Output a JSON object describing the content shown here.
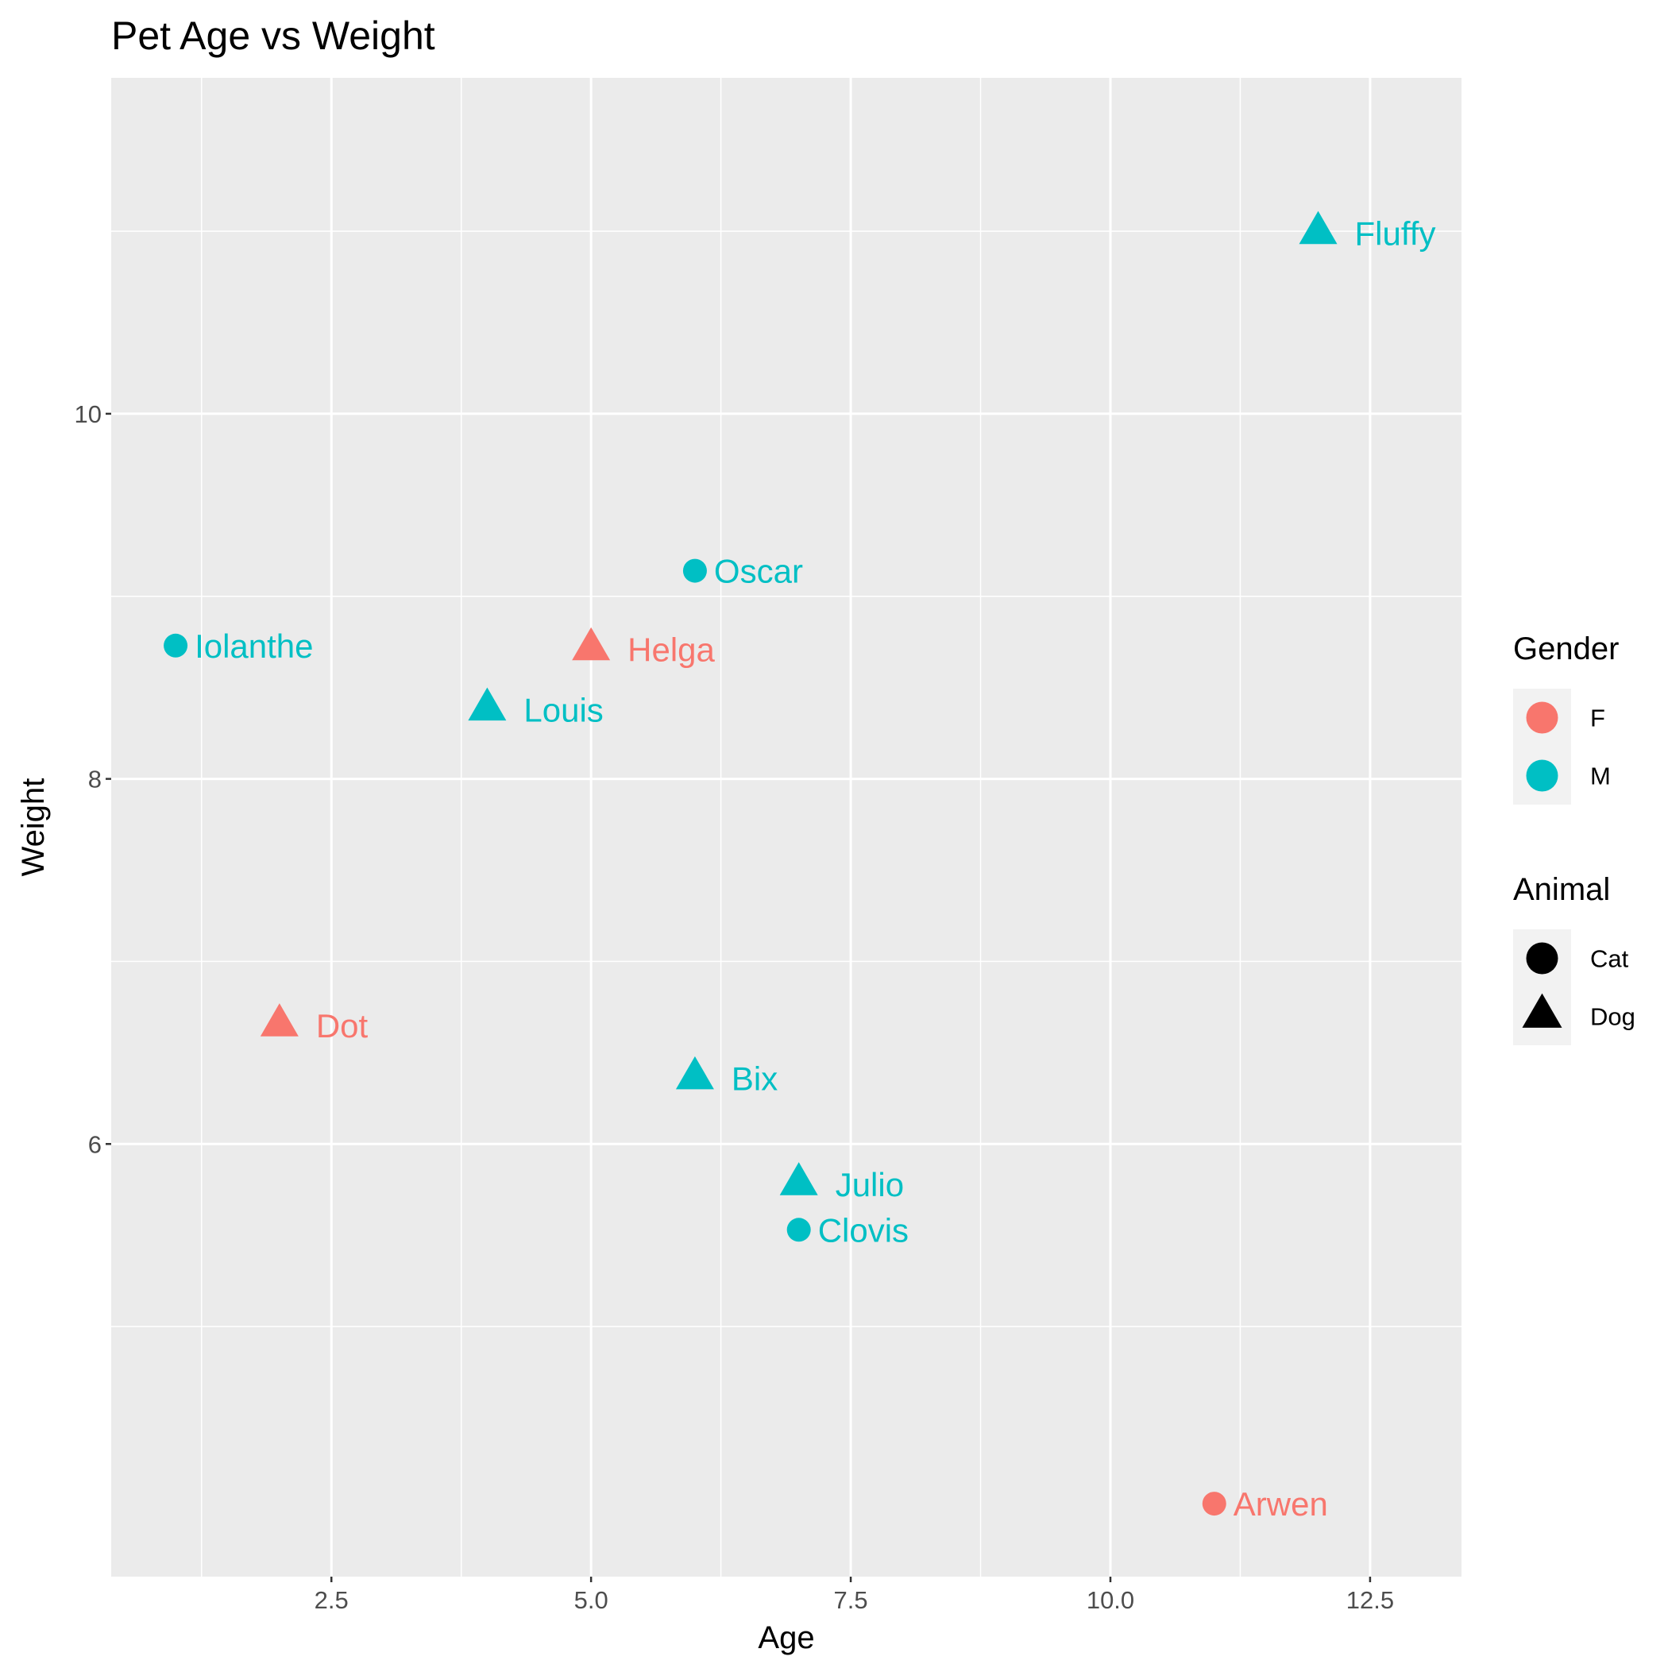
{
  "chart_data": {
    "type": "scatter",
    "title": "Pet Age vs Weight",
    "xlabel": "Age",
    "ylabel": "Weight",
    "xlim": [
      0.38,
      13.38
    ],
    "ylim": [
      3.63,
      11.84
    ],
    "x_ticks": [
      2.5,
      5.0,
      7.5,
      10.0,
      12.5
    ],
    "x_tick_labels": [
      "2.5",
      "5.0",
      "7.5",
      "10.0",
      "12.5"
    ],
    "y_ticks": [
      6,
      8,
      10
    ],
    "y_tick_labels": [
      "6",
      "8",
      "10"
    ],
    "grid": true,
    "legend_position": "right",
    "colors": {
      "F": "#F8766D",
      "M": "#00BFC4"
    },
    "points": [
      {
        "label": "Fluffy",
        "x": 12,
        "y": 10.99,
        "gender": "M",
        "animal": "Dog"
      },
      {
        "label": "Oscar",
        "x": 6,
        "y": 9.14,
        "gender": "M",
        "animal": "Cat"
      },
      {
        "label": "Iolanthe",
        "x": 1,
        "y": 8.73,
        "gender": "M",
        "animal": "Cat"
      },
      {
        "label": "Helga",
        "x": 5,
        "y": 8.71,
        "gender": "F",
        "animal": "Dog"
      },
      {
        "label": "Louis",
        "x": 4,
        "y": 8.38,
        "gender": "M",
        "animal": "Dog"
      },
      {
        "label": "Dot",
        "x": 2,
        "y": 6.65,
        "gender": "F",
        "animal": "Dog"
      },
      {
        "label": "Bix",
        "x": 6,
        "y": 6.36,
        "gender": "M",
        "animal": "Dog"
      },
      {
        "label": "Julio",
        "x": 7,
        "y": 5.78,
        "gender": "M",
        "animal": "Dog"
      },
      {
        "label": "Clovis",
        "x": 7,
        "y": 5.53,
        "gender": "M",
        "animal": "Cat"
      },
      {
        "label": "Arwen",
        "x": 11,
        "y": 4.03,
        "gender": "F",
        "animal": "Cat"
      }
    ],
    "legends": [
      {
        "title": "Gender",
        "entries": [
          {
            "label": "F",
            "color": "#F8766D",
            "shape": "circle"
          },
          {
            "label": "M",
            "color": "#00BFC4",
            "shape": "circle"
          }
        ]
      },
      {
        "title": "Animal",
        "entries": [
          {
            "label": "Cat",
            "color": "#000000",
            "shape": "circle"
          },
          {
            "label": "Dog",
            "color": "#000000",
            "shape": "triangle"
          }
        ]
      }
    ]
  }
}
